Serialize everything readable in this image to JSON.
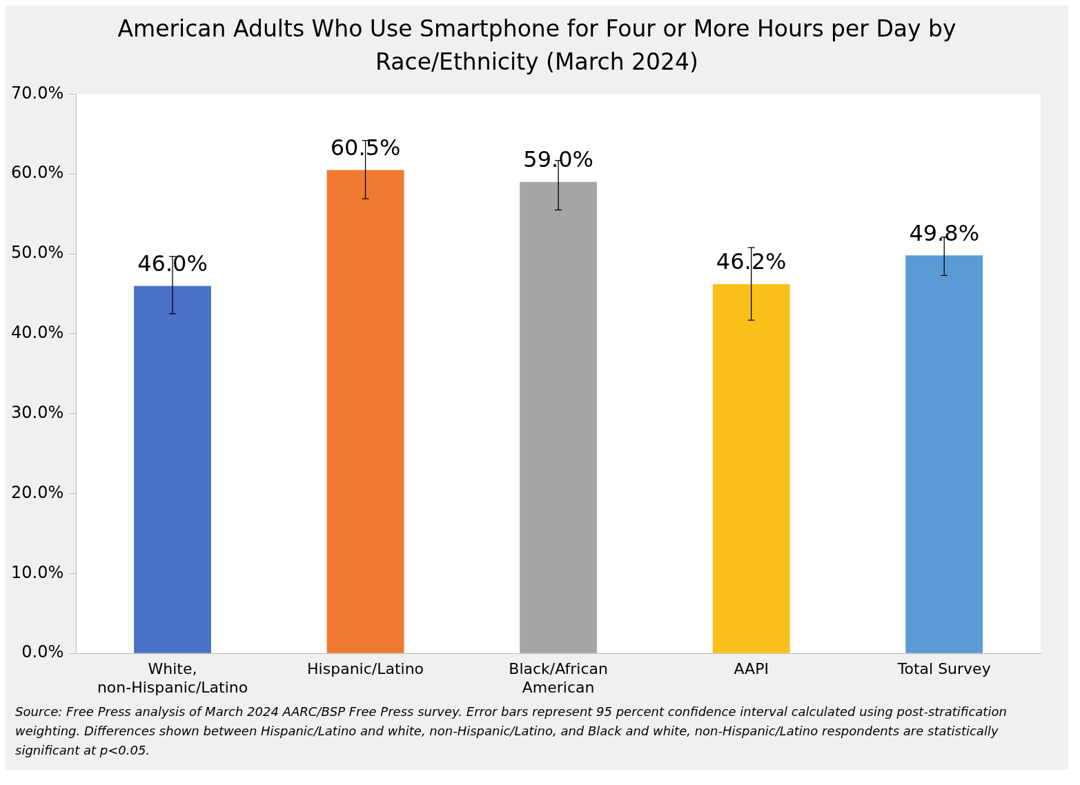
{
  "chart_data": {
    "type": "bar",
    "title": "American Adults Who Use Smartphone for Four or More Hours per Day by Race/Ethnicity (March 2024)",
    "categories": [
      "White, non-Hispanic/Latino",
      "Hispanic/Latino",
      "Black/African American",
      "AAPI",
      "Total Survey"
    ],
    "values": [
      46.0,
      60.5,
      59.0,
      46.2,
      49.8
    ],
    "colors": [
      "#4a72c8",
      "#ef7a30",
      "#a5a5a5",
      "#fbbf1a",
      "#5b9bd5"
    ],
    "errors": [
      [
        42.5,
        49.7
      ],
      [
        56.9,
        64.2
      ],
      [
        55.5,
        61.7
      ],
      [
        41.7,
        50.8
      ],
      [
        47.3,
        52.1
      ]
    ],
    "value_labels": [
      "46.0%",
      "60.5%",
      "59.0%",
      "46.2%",
      "49.8%"
    ],
    "ylim": [
      0,
      70
    ],
    "yticks": [
      {
        "value": 0,
        "label": "0.0%"
      },
      {
        "value": 10,
        "label": "10.0%"
      },
      {
        "value": 20,
        "label": "20.0%"
      },
      {
        "value": 30,
        "label": "30.0%"
      },
      {
        "value": 40,
        "label": "40.0%"
      },
      {
        "value": 50,
        "label": "50.0%"
      },
      {
        "value": 60,
        "label": "60.0%"
      },
      {
        "value": 70,
        "label": "70.0%"
      }
    ],
    "grid": false,
    "legend": false,
    "annotations": [
      "Source: Free Press analysis of March 2024 AARC/BSP Free Press survey. Error bars represent 95 percent confidence interval calculated using post-stratification weighting. Differences shown between Hispanic/Latino and white, non-Hispanic/Latino, and Black and white, non-Hispanic/Latino respondents are statistically significant at p<0.05."
    ]
  }
}
